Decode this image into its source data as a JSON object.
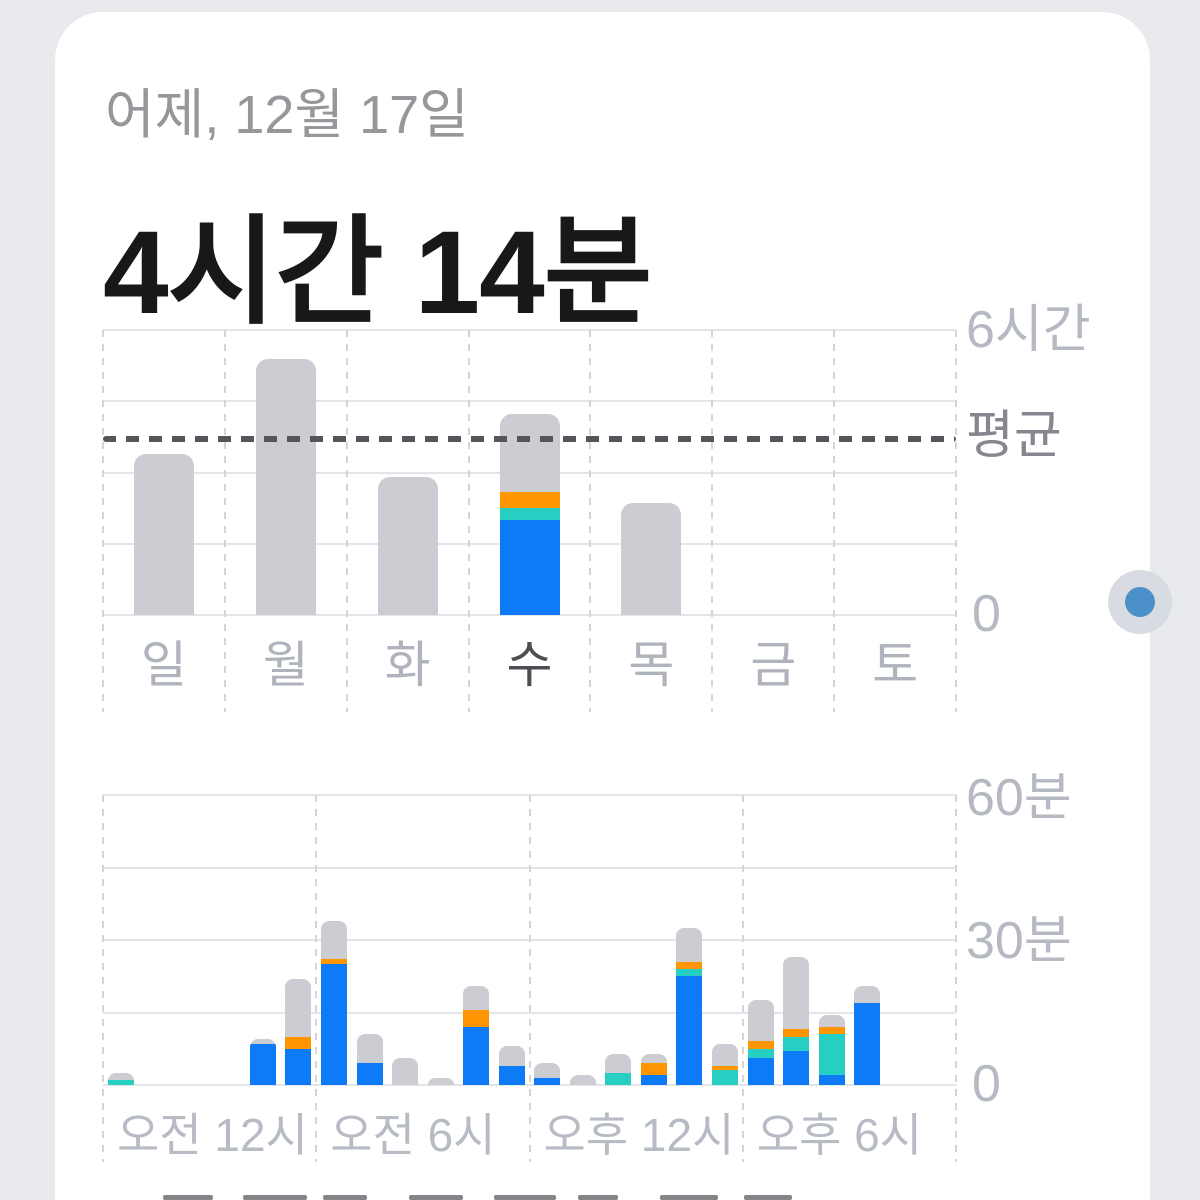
{
  "header": {
    "date_label": "어제, 12월 17일",
    "total_label": "4시간 14분"
  },
  "colors": {
    "background": "#e9eaee",
    "card": "#ffffff",
    "blue": "#0d7bf7",
    "teal": "#27cfc3",
    "orange": "#ff9500",
    "gray": "#cccdd2",
    "average_line": "#55565c",
    "scroll_dot": "#4b90c9"
  },
  "weekly_chart": {
    "type": "bar",
    "stacked": true,
    "unit": "hours",
    "ylim": [
      0,
      6
    ],
    "grid_interval_hours": 1.5,
    "y_axis_labels": [
      "6시간",
      "평균",
      "0"
    ],
    "average_hours": 3.7,
    "categories": [
      "일",
      "월",
      "화",
      "수",
      "목",
      "금",
      "토"
    ],
    "selected_category": "수",
    "segment_order_bottom_up": [
      "blue",
      "teal",
      "orange",
      "gray"
    ],
    "bars": [
      {
        "day": "일",
        "segments": {
          "gray": 3.4
        }
      },
      {
        "day": "월",
        "segments": {
          "gray": 5.4
        }
      },
      {
        "day": "화",
        "segments": {
          "gray": 2.9
        }
      },
      {
        "day": "수",
        "segments": {
          "blue": 2.0,
          "teal": 0.25,
          "orange": 0.33,
          "gray": 1.65
        }
      },
      {
        "day": "목",
        "segments": {
          "gray": 2.35
        }
      },
      {
        "day": "금",
        "segments": {}
      },
      {
        "day": "토",
        "segments": {}
      }
    ]
  },
  "hourly_chart": {
    "type": "bar",
    "stacked": true,
    "unit": "minutes",
    "ylim": [
      0,
      60
    ],
    "grid_interval_minutes": 15,
    "y_axis_labels": [
      "60분",
      "30분",
      "0"
    ],
    "x_axis_labels": [
      "오전 12시",
      "오전 6시",
      "오후 12시",
      "오후 6시"
    ],
    "x_axis_label_hours": [
      0,
      6,
      12,
      18
    ],
    "segment_order_bottom_up": [
      "blue",
      "teal",
      "orange",
      "gray"
    ],
    "hours": [
      {
        "hour": 0,
        "segments": {
          "teal": 1.0,
          "gray": 1.5
        }
      },
      {
        "hour": 1,
        "segments": {}
      },
      {
        "hour": 2,
        "segments": {}
      },
      {
        "hour": 3,
        "segments": {}
      },
      {
        "hour": 4,
        "segments": {
          "blue": 8.5,
          "gray": 1.0
        }
      },
      {
        "hour": 5,
        "segments": {
          "blue": 7.5,
          "orange": 2.5,
          "gray": 12.0
        }
      },
      {
        "hour": 6,
        "segments": {
          "blue": 25.0,
          "orange": 1.0,
          "gray": 8.0
        }
      },
      {
        "hour": 7,
        "segments": {
          "blue": 4.5,
          "gray": 6.0
        }
      },
      {
        "hour": 8,
        "segments": {
          "gray": 5.5
        }
      },
      {
        "hour": 9,
        "segments": {
          "gray": 1.5
        }
      },
      {
        "hour": 10,
        "segments": {
          "blue": 12.0,
          "orange": 3.5,
          "gray": 5.0
        }
      },
      {
        "hour": 11,
        "segments": {
          "blue": 4.0,
          "gray": 4.0
        }
      },
      {
        "hour": 12,
        "segments": {
          "blue": 1.5,
          "gray": 3.0
        }
      },
      {
        "hour": 13,
        "segments": {
          "gray": 2.0
        }
      },
      {
        "hour": 14,
        "segments": {
          "teal": 2.5,
          "gray": 4.0
        }
      },
      {
        "hour": 15,
        "segments": {
          "blue": 2.0,
          "orange": 2.5,
          "gray": 2.0
        }
      },
      {
        "hour": 16,
        "segments": {
          "blue": 22.5,
          "teal": 1.5,
          "orange": 1.5,
          "gray": 7.0
        }
      },
      {
        "hour": 17,
        "segments": {
          "teal": 3.0,
          "orange": 1.0,
          "gray": 4.5
        }
      },
      {
        "hour": 18,
        "segments": {
          "blue": 5.5,
          "teal": 2.0,
          "orange": 1.5,
          "gray": 8.5
        }
      },
      {
        "hour": 19,
        "segments": {
          "blue": 7.0,
          "teal": 3.0,
          "orange": 1.5,
          "gray": 15.0
        }
      },
      {
        "hour": 20,
        "segments": {
          "blue": 2.0,
          "teal": 8.5,
          "orange": 1.5,
          "gray": 2.5
        }
      },
      {
        "hour": 21,
        "segments": {
          "blue": 17.0,
          "gray": 3.5
        }
      },
      {
        "hour": 22,
        "segments": {}
      },
      {
        "hour": 23,
        "segments": {}
      }
    ]
  },
  "scroll_indicator": {
    "shape": "dot"
  }
}
